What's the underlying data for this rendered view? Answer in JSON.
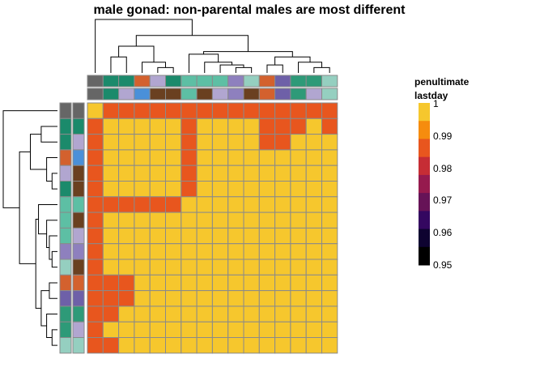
{
  "chart_data": {
    "type": "heatmap",
    "title": "male gonad: non-parental males are most different",
    "annotation_labels": [
      "penultimate",
      "lastday"
    ],
    "legend": {
      "ticks": [
        "1",
        "0.99",
        "0.98",
        "0.97",
        "0.96",
        "0.95"
      ],
      "colors": [
        "#F6C72D",
        "#F68C0E",
        "#E8561E",
        "#C62D35",
        "#961A4E",
        "#661357",
        "#340760",
        "#0E0330",
        "#000000"
      ],
      "range": [
        0.95,
        1
      ]
    },
    "colors": {
      "grey": "#666666",
      "dgreen": "#1B8A6B",
      "lav": "#B1A6D0",
      "orange": "#D3612E",
      "blue": "#4A90D9",
      "brown": "#6A4020",
      "aqua": "#5DBFA4",
      "purple": "#8E80BE",
      "ltaqua": "#95CFC0",
      "violet": "#6E60A8",
      "green": "#2E9A78"
    },
    "col_annotations": {
      "penultimate": [
        "grey",
        "dgreen",
        "dgreen",
        "orange",
        "lav",
        "dgreen",
        "aqua",
        "aqua",
        "aqua",
        "purple",
        "ltaqua",
        "orange",
        "violet",
        "green",
        "green",
        "ltaqua"
      ],
      "lastday": [
        "grey",
        "dgreen",
        "lav",
        "blue",
        "brown",
        "brown",
        "aqua",
        "brown",
        "lav",
        "purple",
        "brown",
        "orange",
        "violet",
        "green",
        "lav",
        "ltaqua"
      ]
    },
    "row_annotations": {
      "penultimate": [
        "grey",
        "dgreen",
        "dgreen",
        "orange",
        "lav",
        "dgreen",
        "aqua",
        "aqua",
        "aqua",
        "purple",
        "ltaqua",
        "orange",
        "violet",
        "green",
        "green",
        "ltaqua"
      ],
      "lastday": [
        "grey",
        "dgreen",
        "lav",
        "blue",
        "brown",
        "brown",
        "aqua",
        "brown",
        "lav",
        "purple",
        "brown",
        "orange",
        "violet",
        "green",
        "lav",
        "ltaqua"
      ]
    },
    "matrix": [
      [
        1,
        0.985,
        0.985,
        0.985,
        0.99,
        0.99,
        0.99,
        0.99,
        0.99,
        0.99,
        0.99,
        0.99,
        0.985,
        0.99,
        0.99,
        0.99
      ],
      [
        0.985,
        1,
        1,
        1,
        1,
        1,
        0.99,
        1,
        1,
        1,
        1,
        0.99,
        0.99,
        0.99,
        1,
        0.99
      ],
      [
        0.985,
        1,
        1,
        1,
        1,
        1,
        0.99,
        1,
        1,
        1,
        1,
        0.99,
        0.99,
        1,
        1,
        1
      ],
      [
        0.985,
        1,
        1,
        1,
        1,
        1,
        0.99,
        1,
        1,
        1,
        1,
        1,
        1,
        1,
        1,
        1
      ],
      [
        0.99,
        1,
        1,
        1,
        1,
        1,
        0.99,
        1,
        1,
        1,
        1,
        1,
        1,
        1,
        1,
        1
      ],
      [
        0.99,
        1,
        1,
        1,
        1,
        1,
        0.99,
        1,
        1,
        1,
        1,
        1,
        1,
        1,
        1,
        1
      ],
      [
        0.99,
        0.99,
        0.99,
        0.99,
        0.99,
        0.99,
        1,
        1,
        1,
        1,
        1,
        1,
        1,
        1,
        1,
        1
      ],
      [
        0.99,
        1,
        1,
        1,
        1,
        1,
        1,
        1,
        1,
        1,
        1,
        1,
        1,
        1,
        1,
        1
      ],
      [
        0.99,
        1,
        1,
        1,
        1,
        1,
        1,
        1,
        1,
        1,
        1,
        1,
        1,
        1,
        1,
        1
      ],
      [
        0.99,
        1,
        1,
        1,
        1,
        1,
        1,
        1,
        1,
        1,
        1,
        1,
        1,
        1,
        1,
        1
      ],
      [
        0.99,
        1,
        1,
        1,
        1,
        1,
        1,
        1,
        1,
        1,
        1,
        1,
        1,
        1,
        1,
        1
      ],
      [
        0.99,
        0.99,
        0.99,
        1,
        1,
        1,
        1,
        1,
        1,
        1,
        1,
        1,
        1,
        1,
        1,
        1
      ],
      [
        0.985,
        0.99,
        0.99,
        1,
        1,
        1,
        1,
        1,
        1,
        1,
        1,
        1,
        1,
        1,
        1,
        1
      ],
      [
        0.99,
        0.99,
        1,
        1,
        1,
        1,
        1,
        1,
        1,
        1,
        1,
        1,
        1,
        1,
        1,
        1
      ],
      [
        0.99,
        1,
        1,
        1,
        1,
        1,
        1,
        1,
        1,
        1,
        1,
        1,
        1,
        1,
        1,
        1
      ],
      [
        0.99,
        0.99,
        1,
        1,
        1,
        1,
        1,
        1,
        1,
        1,
        1,
        1,
        1,
        1,
        1,
        1
      ]
    ]
  }
}
